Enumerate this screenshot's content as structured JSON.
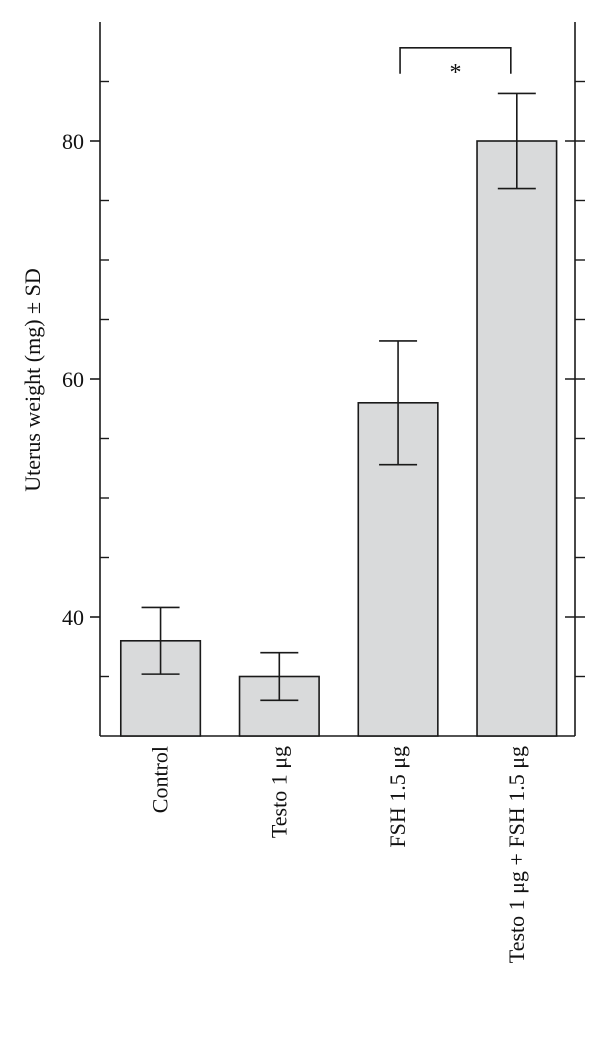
{
  "chart_data": {
    "type": "bar",
    "title": "",
    "xlabel": "",
    "ylabel": "Uterus weight (mg) ± SD",
    "categories": [
      "Control",
      "Testo 1 μg",
      "FSH 1.5 μg",
      "Testo 1 μg + FSH 1.5 μg"
    ],
    "series": [
      {
        "values": [
          38,
          35,
          58,
          80
        ],
        "error": [
          2.8,
          2.0,
          5.2,
          4.0
        ]
      }
    ],
    "ylim": [
      30,
      90
    ],
    "yticks": [
      40,
      60,
      80
    ],
    "yticklabels": [
      "40",
      "60",
      "80"
    ],
    "minor_yticks": [
      35,
      45,
      50,
      55,
      65,
      70,
      75,
      85
    ],
    "grid": false,
    "legend": "none",
    "colors": {
      "bar_fill": "#d9dadb",
      "bar_edge": "#1a1a1a",
      "axis": "#1a1a1a"
    },
    "significance": [
      {
        "from": 2,
        "to": 3,
        "label": "*",
        "level": 88
      }
    ]
  }
}
